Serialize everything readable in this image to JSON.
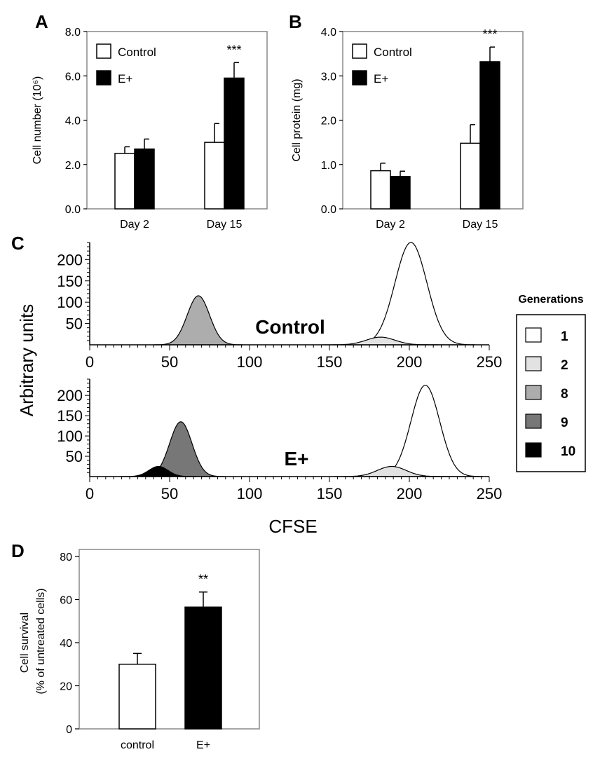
{
  "panels": {
    "A": {
      "letter": "A"
    },
    "B": {
      "letter": "B"
    },
    "C": {
      "letter": "C"
    },
    "D": {
      "letter": "D"
    }
  },
  "chart_data": [
    {
      "id": "A",
      "type": "bar",
      "categories": [
        "Day 2",
        "Day 15"
      ],
      "series": [
        {
          "name": "Control",
          "color": "#ffffff",
          "values": [
            2.5,
            3.0
          ],
          "errors": [
            0.3,
            0.85
          ]
        },
        {
          "name": "E+",
          "color": "#000000",
          "values": [
            2.7,
            5.9
          ],
          "errors": [
            0.45,
            0.7
          ]
        }
      ],
      "ylabel": "Cell number (10⁶)",
      "ylim": [
        0,
        8
      ],
      "yticks": [
        "0.0",
        "2.0",
        "4.0",
        "6.0",
        "8.0"
      ],
      "annotations": [
        {
          "category": "Day 15",
          "text": "***"
        }
      ],
      "legend": "top-left"
    },
    {
      "id": "B",
      "type": "bar",
      "categories": [
        "Day 2",
        "Day 15"
      ],
      "series": [
        {
          "name": "Control",
          "color": "#ffffff",
          "values": [
            0.86,
            1.48
          ],
          "errors": [
            0.17,
            0.42
          ]
        },
        {
          "name": "E+",
          "color": "#000000",
          "values": [
            0.73,
            3.32
          ],
          "errors": [
            0.12,
            0.33
          ]
        }
      ],
      "ylabel": "Cell protein (mg)",
      "ylim": [
        0,
        4
      ],
      "yticks": [
        "0.0",
        "1.0",
        "2.0",
        "3.0",
        "4.0"
      ],
      "annotations": [
        {
          "category": "Day 15",
          "text": "***"
        }
      ],
      "legend": "top-left"
    },
    {
      "id": "C",
      "type": "area",
      "xlabel": "CFSE",
      "ylabel": "Arbitrary units",
      "xlim": [
        0,
        250
      ],
      "ylim": [
        0,
        240
      ],
      "xticks": [
        "0",
        "50",
        "100",
        "150",
        "200",
        "250"
      ],
      "yticks": [
        "50",
        "100",
        "150",
        "200"
      ],
      "subplots": [
        {
          "label": "Control",
          "peaks": [
            {
              "generation": "8",
              "center": 68,
              "sigma": 7,
              "height": 115
            },
            {
              "generation": "2",
              "center": 182,
              "sigma": 9,
              "height": 18
            },
            {
              "generation": "1",
              "center": 201,
              "sigma": 10,
              "height": 240
            }
          ]
        },
        {
          "label": "E+",
          "peaks": [
            {
              "generation": "9",
              "center": 57,
              "sigma": 7,
              "height": 135
            },
            {
              "generation": "10",
              "center": 43,
              "sigma": 6,
              "height": 25
            },
            {
              "generation": "2",
              "center": 189,
              "sigma": 9,
              "height": 25
            },
            {
              "generation": "1",
              "center": 210,
              "sigma": 9,
              "height": 225
            }
          ]
        }
      ],
      "legend": {
        "title": "Generations",
        "entries": [
          {
            "label": "1",
            "color": "#ffffff"
          },
          {
            "label": "2",
            "color": "#e2e2e2"
          },
          {
            "label": "8",
            "color": "#adadad"
          },
          {
            "label": "9",
            "color": "#777777"
          },
          {
            "label": "10",
            "color": "#000000"
          }
        ]
      }
    },
    {
      "id": "D",
      "type": "bar",
      "categories": [
        "control",
        "E+"
      ],
      "series": [
        {
          "name": "",
          "colors": [
            "#ffffff",
            "#000000"
          ],
          "values": [
            30,
            56.5
          ],
          "errors": [
            5,
            7
          ]
        }
      ],
      "ylabel": "Cell survival\n(% of untreated cells)",
      "ylim": [
        0,
        80
      ],
      "yticks": [
        "0",
        "20",
        "40",
        "60",
        "80"
      ],
      "annotations": [
        {
          "category": "E+",
          "text": "**"
        }
      ]
    }
  ]
}
